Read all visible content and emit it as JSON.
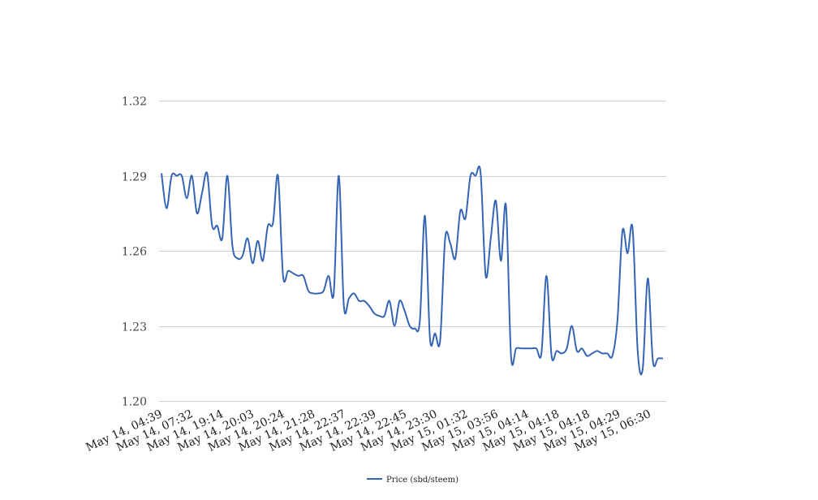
{
  "chart_data": {
    "type": "line",
    "title": "",
    "xlabel": "",
    "ylabel": "",
    "ylim": [
      1.2,
      1.32
    ],
    "y_ticks": [
      "1.20",
      "1.23",
      "1.26",
      "1.29",
      "1.32"
    ],
    "x_tick_labels": [
      "May 14, 04:39",
      "May 14, 07:32",
      "May 14, 19:14",
      "May 14, 20:03",
      "May 14, 20:24",
      "May 14, 21:28",
      "May 14, 22:37",
      "May 14, 22:39",
      "May 14, 22:45",
      "May 14, 23:30",
      "May 15, 01:32",
      "May 15, 03:56",
      "May 15, 04:14",
      "May 15, 04:18",
      "May 15, 04:18",
      "May 15, 04:29",
      "May 15, 06:30"
    ],
    "grid": true,
    "legend_position": "bottom-center",
    "series": [
      {
        "name": "Price (sbd/steem)",
        "color": "#3464b4",
        "values": [
          1.291,
          1.277,
          1.29,
          1.29,
          1.29,
          1.281,
          1.29,
          1.275,
          1.283,
          1.291,
          1.27,
          1.27,
          1.265,
          1.29,
          1.262,
          1.257,
          1.258,
          1.265,
          1.255,
          1.264,
          1.256,
          1.27,
          1.271,
          1.29,
          1.25,
          1.252,
          1.251,
          1.25,
          1.25,
          1.244,
          1.243,
          1.243,
          1.244,
          1.25,
          1.243,
          1.29,
          1.238,
          1.241,
          1.243,
          1.24,
          1.24,
          1.238,
          1.235,
          1.234,
          1.234,
          1.24,
          1.23,
          1.24,
          1.236,
          1.23,
          1.229,
          1.232,
          1.274,
          1.225,
          1.227,
          1.224,
          1.265,
          1.263,
          1.257,
          1.276,
          1.273,
          1.29,
          1.29,
          1.291,
          1.25,
          1.265,
          1.28,
          1.256,
          1.278,
          1.218,
          1.221,
          1.221,
          1.221,
          1.221,
          1.221,
          1.219,
          1.25,
          1.218,
          1.22,
          1.219,
          1.221,
          1.23,
          1.22,
          1.221,
          1.218,
          1.219,
          1.22,
          1.219,
          1.219,
          1.218,
          1.232,
          1.268,
          1.259,
          1.269,
          1.22,
          1.213,
          1.249,
          1.216,
          1.217,
          1.217
        ]
      }
    ]
  }
}
